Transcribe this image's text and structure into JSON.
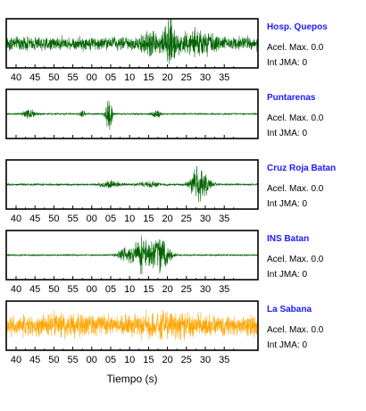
{
  "chart_data": {
    "type": "line",
    "xlabel": "Tiempo (s)",
    "x_ticks": [
      "40",
      "45",
      "50",
      "55",
      "00",
      "05",
      "10",
      "15",
      "20",
      "25",
      "30",
      "35"
    ],
    "grid": false,
    "panels": [
      {
        "station": "Hosp. Quepos",
        "acel_label": "Acel. Max.",
        "acel_value": "0.0",
        "int_label": "Int JMA:",
        "int_value": "0",
        "line_color": "#006400",
        "noise_level": 0.35,
        "bursts": [
          {
            "t": 20.5,
            "amp": 0.9,
            "width": 1.2
          },
          {
            "t": 15.5,
            "amp": 0.45,
            "width": 1.5
          },
          {
            "t": 28,
            "amp": 0.35,
            "width": 3
          }
        ],
        "show_tick_labels": true
      },
      {
        "station": "Puntarenas",
        "acel_label": "Acel. Max.",
        "acel_value": "0.0",
        "int_label": "Int JMA:",
        "int_value": "0",
        "line_color": "#006400",
        "noise_level": 0.04,
        "bursts": [
          {
            "t": 4.5,
            "amp": 0.95,
            "width": 0.6
          },
          {
            "t": 43.5,
            "amp": 0.25,
            "width": 1.2
          },
          {
            "t": 57.5,
            "amp": 0.2,
            "width": 0.6
          },
          {
            "t": 17,
            "amp": 0.25,
            "width": 0.8
          }
        ],
        "show_tick_labels": false
      },
      {
        "station": "Cruz Roja Batan",
        "acel_label": "Acel. Max.",
        "acel_value": "0.0",
        "int_label": "Int JMA:",
        "int_value": "0",
        "line_color": "#006400",
        "noise_level": 0.05,
        "bursts": [
          {
            "t": 28.5,
            "amp": 0.95,
            "width": 1.6
          },
          {
            "t": 5,
            "amp": 0.15,
            "width": 2
          },
          {
            "t": 15,
            "amp": 0.12,
            "width": 2
          }
        ],
        "show_tick_labels": true
      },
      {
        "station": "INS Batan",
        "acel_label": "Acel. Max.",
        "acel_value": "0.0",
        "int_label": "Int JMA:",
        "int_value": "0",
        "line_color": "#006400",
        "noise_level": 0.04,
        "bursts": [
          {
            "t": 13.5,
            "amp": 0.85,
            "width": 2.4
          },
          {
            "t": 18.5,
            "amp": 0.8,
            "width": 1.6
          },
          {
            "t": 8.5,
            "amp": 0.3,
            "width": 1.2
          }
        ],
        "show_tick_labels": true
      },
      {
        "station": "La Sabana",
        "acel_label": "Acel. Max.",
        "acel_value": "0.0",
        "int_label": "Int JMA:",
        "int_value": "0",
        "line_color": "#FFA500",
        "noise_level": 0.5,
        "bursts": [
          {
            "t": 20,
            "amp": 0.3,
            "width": 6
          },
          {
            "t": 52,
            "amp": 0.15,
            "width": 5
          }
        ],
        "show_tick_labels": true
      }
    ]
  }
}
